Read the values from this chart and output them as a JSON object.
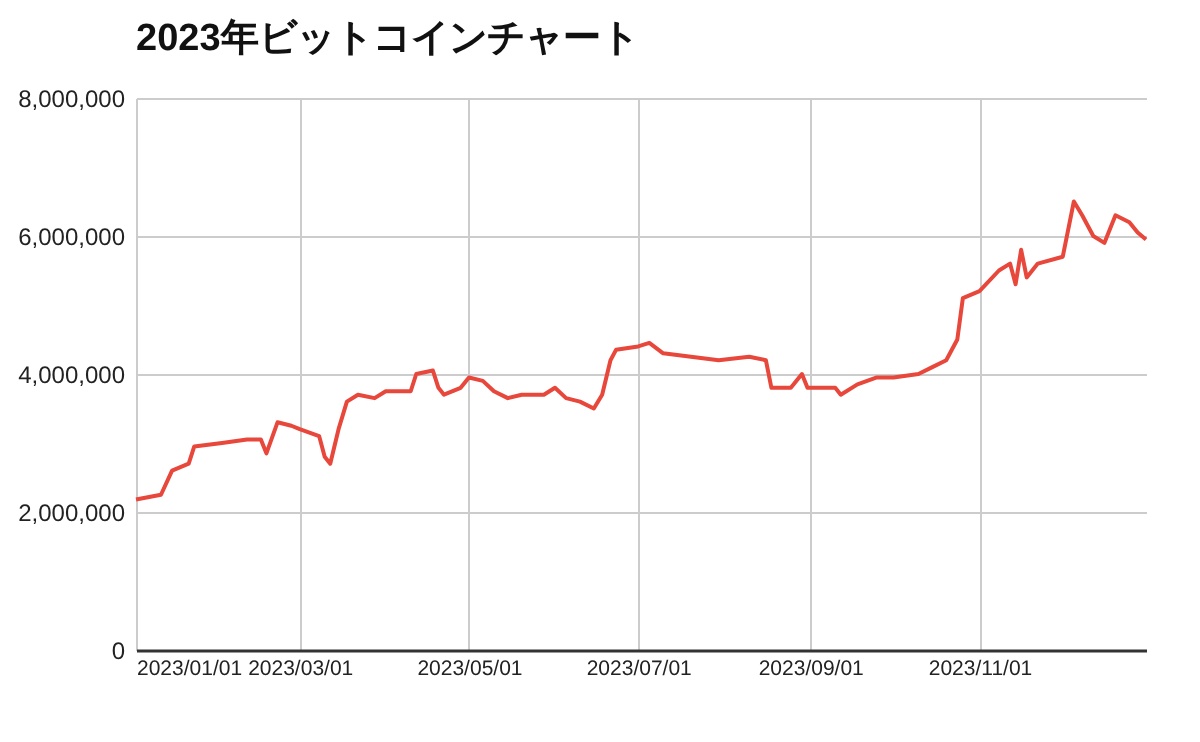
{
  "chart_data": {
    "type": "line",
    "title": "2023年ビットコインチャート",
    "x": [
      "2023-01-01",
      "2023-01-10",
      "2023-01-14",
      "2023-01-20",
      "2023-01-22",
      "2023-02-01",
      "2023-02-10",
      "2023-02-15",
      "2023-02-17",
      "2023-02-21",
      "2023-02-26",
      "2023-03-01",
      "2023-03-08",
      "2023-03-10",
      "2023-03-12",
      "2023-03-15",
      "2023-03-18",
      "2023-03-22",
      "2023-03-28",
      "2023-04-01",
      "2023-04-10",
      "2023-04-12",
      "2023-04-18",
      "2023-04-20",
      "2023-04-22",
      "2023-04-28",
      "2023-05-01",
      "2023-05-06",
      "2023-05-10",
      "2023-05-15",
      "2023-05-20",
      "2023-05-28",
      "2023-06-01",
      "2023-06-05",
      "2023-06-10",
      "2023-06-15",
      "2023-06-18",
      "2023-06-21",
      "2023-06-23",
      "2023-07-01",
      "2023-07-05",
      "2023-07-10",
      "2023-07-20",
      "2023-07-30",
      "2023-08-10",
      "2023-08-16",
      "2023-08-18",
      "2023-08-25",
      "2023-08-29",
      "2023-08-31",
      "2023-09-10",
      "2023-09-12",
      "2023-09-18",
      "2023-09-25",
      "2023-10-01",
      "2023-10-10",
      "2023-10-15",
      "2023-10-20",
      "2023-10-24",
      "2023-10-26",
      "2023-11-01",
      "2023-11-08",
      "2023-11-12",
      "2023-11-14",
      "2023-11-16",
      "2023-11-18",
      "2023-11-22",
      "2023-12-01",
      "2023-12-05",
      "2023-12-08",
      "2023-12-12",
      "2023-12-16",
      "2023-12-20",
      "2023-12-25",
      "2023-12-28",
      "2023-12-31"
    ],
    "series": [
      {
        "color": "#e8473b",
        "values": [
          2180000,
          2250000,
          2600000,
          2700000,
          2950000,
          3000000,
          3050000,
          3050000,
          2850000,
          3300000,
          3250000,
          3200000,
          3100000,
          2800000,
          2700000,
          3200000,
          3600000,
          3700000,
          3650000,
          3750000,
          3750000,
          4000000,
          4050000,
          3800000,
          3700000,
          3800000,
          3950000,
          3900000,
          3750000,
          3650000,
          3700000,
          3700000,
          3800000,
          3650000,
          3600000,
          3500000,
          3700000,
          4200000,
          4350000,
          4400000,
          4450000,
          4300000,
          4250000,
          4200000,
          4250000,
          4200000,
          3800000,
          3800000,
          4000000,
          3800000,
          3800000,
          3700000,
          3850000,
          3950000,
          3950000,
          4000000,
          4100000,
          4200000,
          4500000,
          5100000,
          5200000,
          5500000,
          5600000,
          5300000,
          5800000,
          5400000,
          5600000,
          5700000,
          6500000,
          6300000,
          6000000,
          5900000,
          6300000,
          6200000,
          6050000,
          5950000
        ]
      }
    ],
    "xlim": [
      "2023-01-01",
      "2023-12-31"
    ],
    "xticks": [
      {
        "value": "2023-01-01",
        "label": "2023/01/01"
      },
      {
        "value": "2023-03-01",
        "label": "2023/03/01"
      },
      {
        "value": "2023-05-01",
        "label": "2023/05/01"
      },
      {
        "value": "2023-07-01",
        "label": "2023/07/01"
      },
      {
        "value": "2023-09-01",
        "label": "2023/09/01"
      },
      {
        "value": "2023-11-01",
        "label": "2023/11/01"
      }
    ],
    "ylim": [
      0,
      8000000
    ],
    "yticks": [
      {
        "value": 0,
        "label": "0"
      },
      {
        "value": 2000000,
        "label": "2,000,000"
      },
      {
        "value": 4000000,
        "label": "4,000,000"
      },
      {
        "value": 6000000,
        "label": "6,000,000"
      },
      {
        "value": 8000000,
        "label": "8,000,000"
      }
    ],
    "grid": true
  }
}
